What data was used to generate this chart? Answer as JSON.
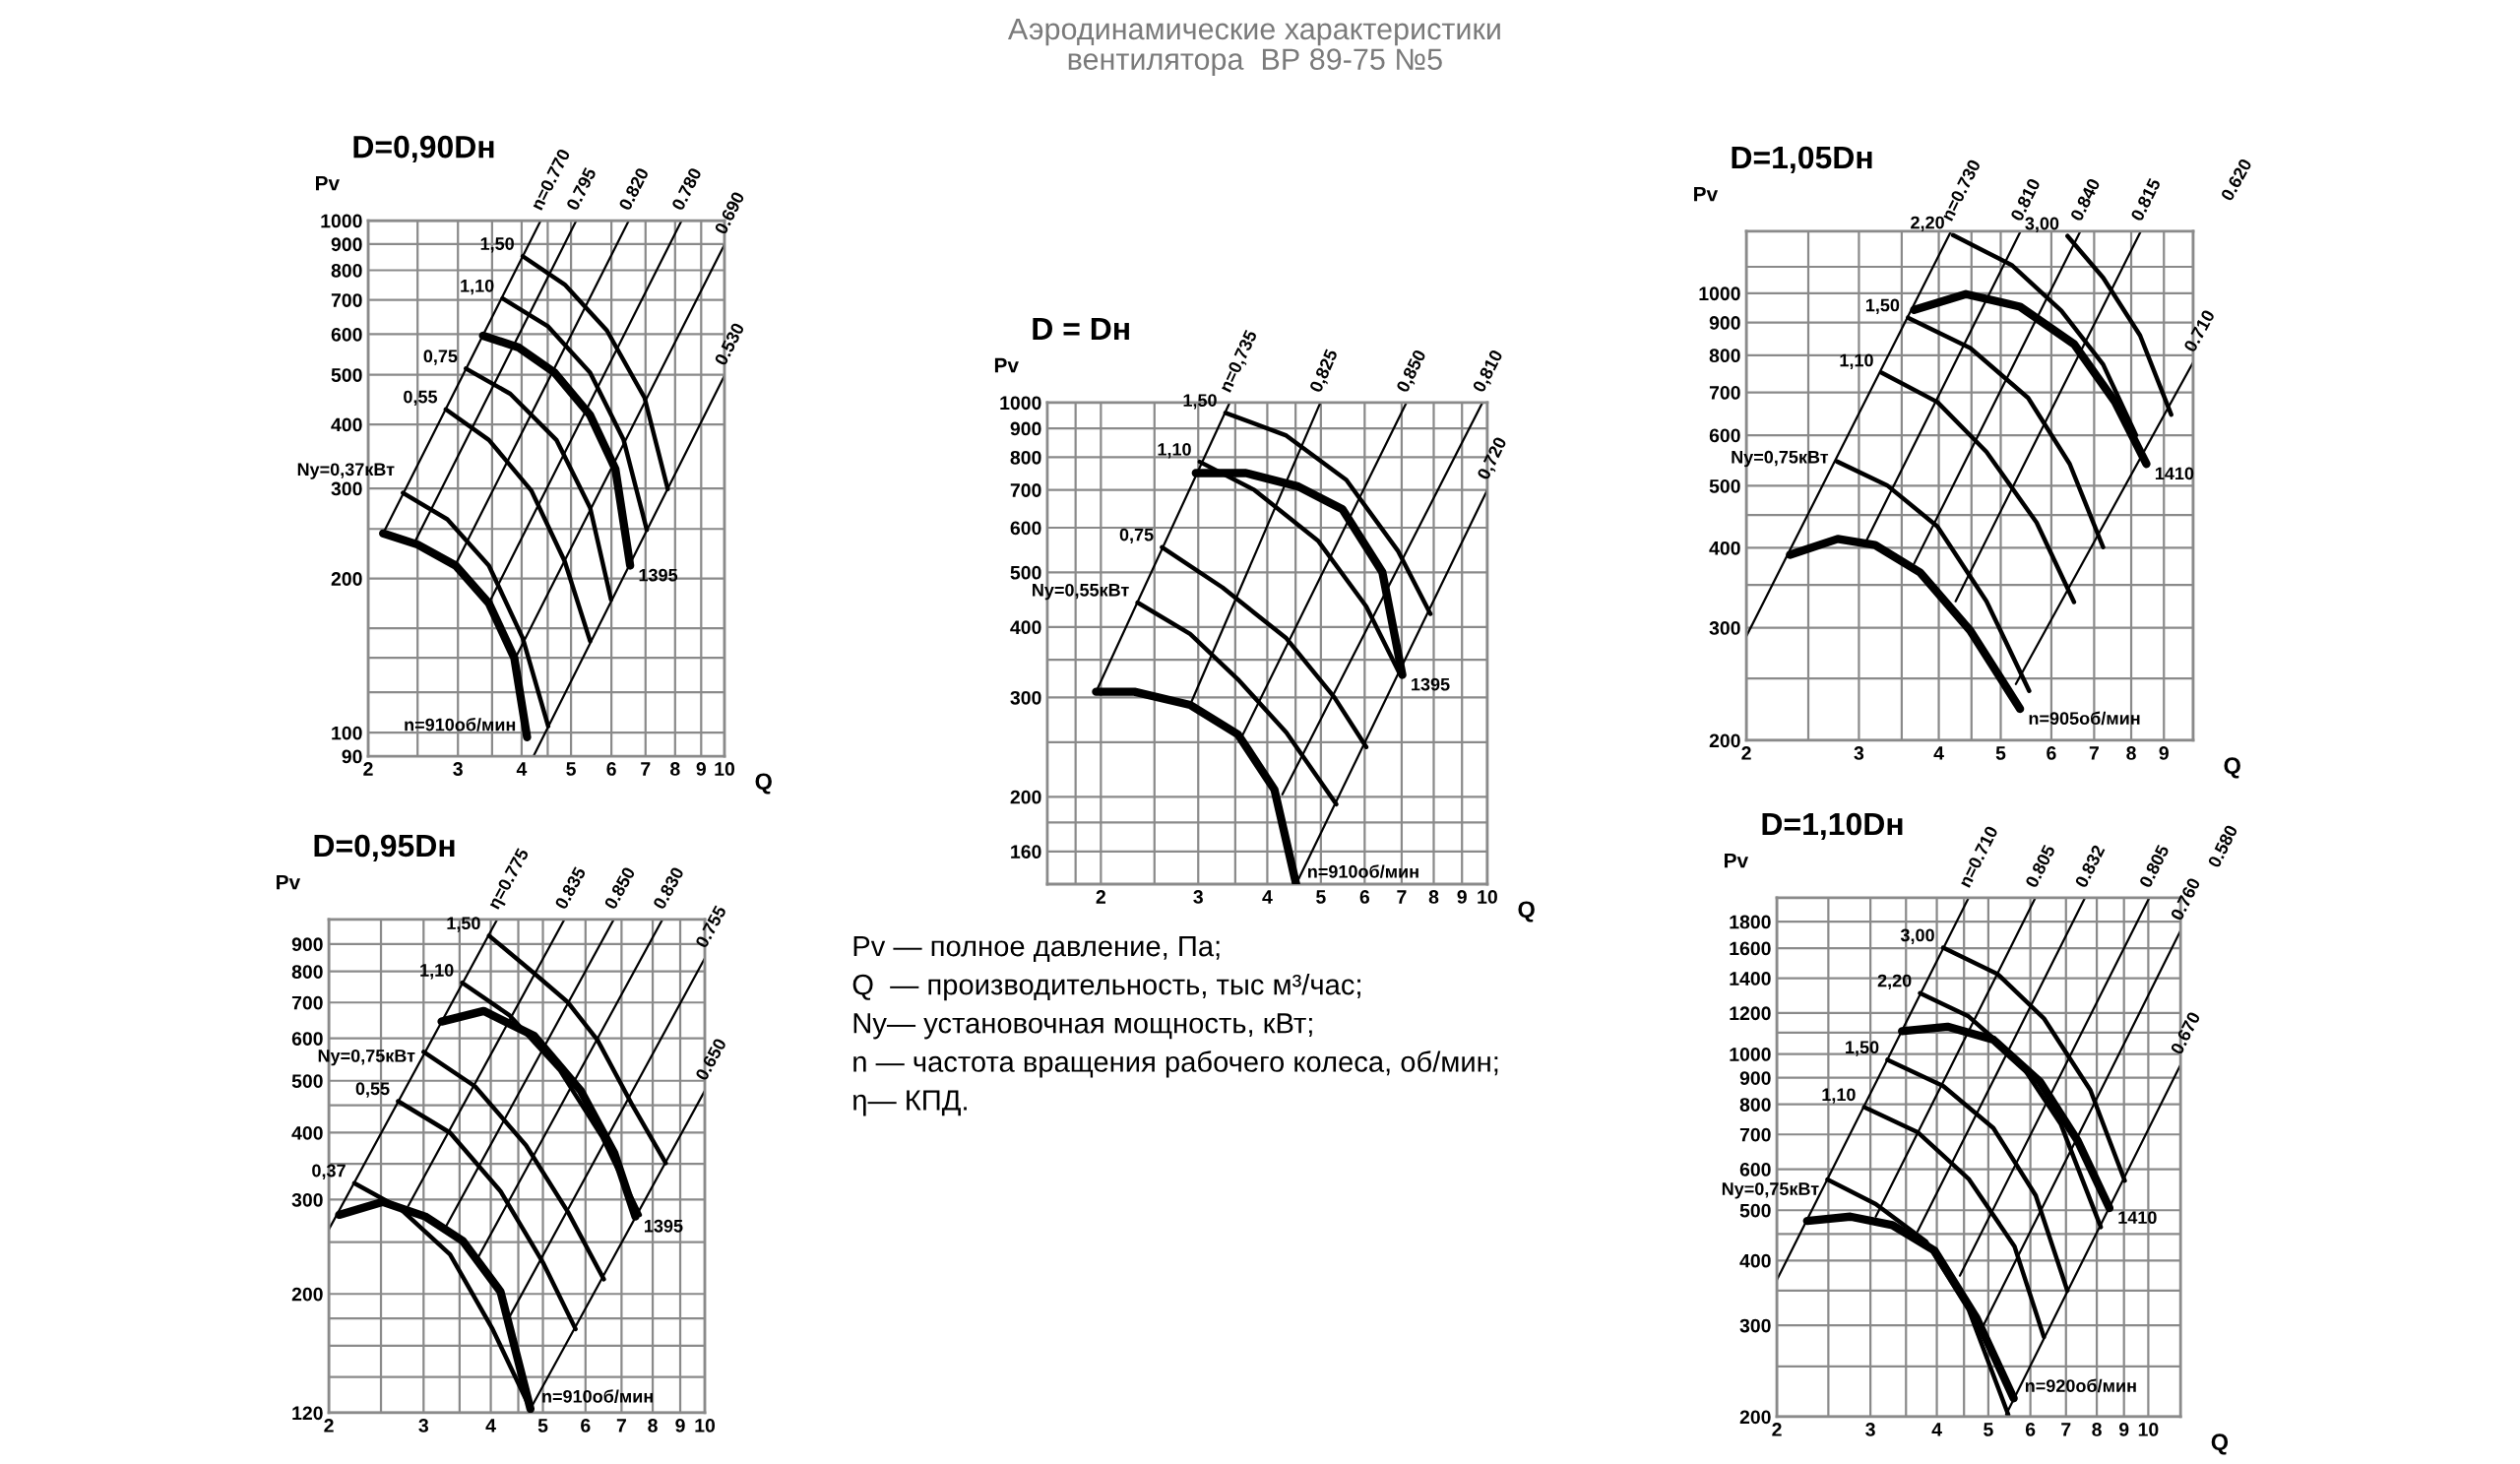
{
  "chart_data": [
    {
      "type": "line",
      "title": "D=0,90Dн",
      "xlabel": "Q",
      "ylabel": "Pv",
      "log": "xy",
      "grid": true,
      "xlim": [
        2,
        10
      ],
      "ylim": [
        90,
        1000
      ],
      "xticks": [
        2,
        {
          "value": 2.5,
          "label": null
        },
        3,
        {
          "value": 3.5,
          "label": null
        },
        4,
        {
          "value": 4.5,
          "label": null
        },
        5,
        6,
        7,
        8,
        9,
        10
      ],
      "yticks": [
        90,
        100,
        {
          "value": 120,
          "label": null
        },
        {
          "value": 140,
          "label": null
        },
        {
          "value": 160,
          "label": null
        },
        200,
        {
          "value": 250,
          "label": null
        },
        300,
        400,
        500,
        600,
        700,
        800,
        900,
        1000
      ],
      "series": [
        {
          "name": "n=0.770",
          "color": "#000000",
          "x": [
            2.14,
            4.36
          ],
          "values": [
            245,
            1000
          ]
        },
        {
          "name": "0.795",
          "color": "#000000",
          "x": [
            2.47,
            5.12
          ],
          "values": [
            236,
            1000
          ]
        },
        {
          "name": "0.820",
          "color": "#000000",
          "x": [
            2.96,
            6.49
          ],
          "values": [
            212,
            1000
          ]
        },
        {
          "name": "0.780",
          "color": "#000000",
          "x": [
            3.45,
            8.24
          ],
          "values": [
            179,
            1000
          ]
        },
        {
          "name": "0.690",
          "color": "#000000",
          "x": [
            3.89,
            10
          ],
          "values": [
            140,
            898
          ]
        },
        {
          "name": "0.530",
          "color": "#000000",
          "x": [
            4.22,
            10
          ],
          "values": [
            90,
            498
          ]
        },
        {
          "name": "Ny=0,37кВт",
          "color": "#000000",
          "x": [
            2.34,
            2.86,
            3.45,
            4.02,
            4.51
          ],
          "values": [
            294,
            261,
            212,
            153,
            103
          ]
        },
        {
          "name": "0,55",
          "color": "#000000",
          "x": [
            2.84,
            3.45,
            4.18,
            4.86,
            5.45
          ],
          "values": [
            428,
            373,
            297,
            216,
            151
          ]
        },
        {
          "name": "0,75",
          "color": "#000000",
          "x": [
            3.11,
            3.8,
            4.68,
            5.45,
            5.99
          ],
          "values": [
            514,
            459,
            373,
            275,
            182
          ]
        },
        {
          "name": "1,10",
          "color": "#000000",
          "x": [
            3.67,
            4.51,
            5.45,
            6.34,
            7.04
          ],
          "values": [
            705,
            621,
            505,
            373,
            249
          ]
        },
        {
          "name": "1,50",
          "color": "#000000",
          "x": [
            4.02,
            4.86,
            5.88,
            6.97,
            7.74
          ],
          "values": [
            852,
            750,
            610,
            451,
            299
          ]
        },
        {
          "name": "n=910об/мин",
          "color": "#000000",
          "x": [
            2.14,
            2.5,
            2.97,
            3.45,
            3.87,
            4.1
          ],
          "values": [
            245,
            233,
            212,
            179,
            140,
            98
          ]
        },
        {
          "name": "1395",
          "color": "#000000",
          "x": [
            3.36,
            3.95,
            4.64,
            5.45,
            6.11,
            6.53
          ],
          "values": [
            596,
            565,
            505,
            417,
            327,
            212
          ]
        }
      ]
    },
    {
      "type": "line",
      "title": "D = Dн",
      "xlabel": "Q",
      "ylabel": "Pv",
      "log": "xy",
      "grid": true,
      "xlim": [
        1.6,
        10
      ],
      "ylim": [
        140,
        1000
      ],
      "xticks": [
        {
          "value": 1.8,
          "label": null
        },
        2,
        {
          "value": 2.5,
          "label": null
        },
        3,
        {
          "value": 3.5,
          "label": null
        },
        4,
        {
          "value": 4.5,
          "label": null
        },
        5,
        6,
        7,
        8,
        9,
        10
      ],
      "yticks": [
        160,
        {
          "value": 180,
          "label": null
        },
        200,
        {
          "value": 250,
          "label": null
        },
        300,
        {
          "value": 350,
          "label": null
        },
        400,
        500,
        600,
        700,
        800,
        900,
        1000
      ],
      "series": [
        {
          "name": "n=0,735",
          "color": "#000000",
          "x": [
            1.96,
            3.42
          ],
          "values": [
            307,
            1000
          ]
        },
        {
          "name": "0,825",
          "color": "#000000",
          "x": [
            2.9,
            4.99
          ],
          "values": [
            291,
            1000
          ]
        },
        {
          "name": "0,850",
          "color": "#000000",
          "x": [
            3.6,
            7.14
          ],
          "values": [
            256,
            1000
          ]
        },
        {
          "name": "0,810",
          "color": "#000000",
          "x": [
            4.26,
            9.8
          ],
          "values": [
            202,
            1000
          ]
        },
        {
          "name": "0,720",
          "color": "#000000",
          "x": [
            4.51,
            10
          ],
          "values": [
            140,
            700
          ]
        },
        {
          "name": "Ny=0,55кВт",
          "color": "#000000",
          "x": [
            2.33,
            2.9,
            3.54,
            4.33,
            5.33
          ],
          "values": [
            442,
            389,
            323,
            260,
            194
          ]
        },
        {
          "name": "0,75",
          "color": "#000000",
          "x": [
            2.58,
            3.32,
            4.33,
            5.29,
            6.04
          ],
          "values": [
            554,
            470,
            382,
            300,
            245
          ]
        },
        {
          "name": "1,10",
          "color": "#000000",
          "x": [
            3.02,
            3.79,
            4.94,
            6.04,
            6.96
          ],
          "values": [
            785,
            700,
            569,
            435,
            329
          ]
        },
        {
          "name": "1,50",
          "color": "#000000",
          "x": [
            3.36,
            4.33,
            5.56,
            6.9,
            7.89
          ],
          "values": [
            959,
            874,
            729,
            545,
            422
          ]
        },
        {
          "name": "n=910об/мин",
          "color": "#000000",
          "x": [
            1.96,
            2.3,
            2.9,
            3.54,
            4.12,
            4.51
          ],
          "values": [
            307,
            307,
            291,
            258,
            206,
            140
          ]
        },
        {
          "name": "1395",
          "color": "#000000",
          "x": [
            2.97,
            3.66,
            4.55,
            5.47,
            6.46,
            7.02
          ],
          "values": [
            750,
            750,
            710,
            647,
            500,
            329
          ]
        }
      ]
    },
    {
      "type": "line",
      "title": "D=1,05Dн",
      "xlabel": "Q",
      "ylabel": "Pv",
      "log": "xy",
      "grid": true,
      "xlim": [
        2,
        10
      ],
      "ylim": [
        200,
        1250
      ],
      "xticks": [
        2,
        {
          "value": 2.5,
          "label": null
        },
        3,
        {
          "value": 3.5,
          "label": null
        },
        4,
        {
          "value": 4.5,
          "label": null
        },
        5,
        6,
        7,
        8,
        9,
        {
          "value": 10,
          "label": null
        }
      ],
      "yticks": [
        200,
        {
          "value": 250,
          "label": null
        },
        300,
        {
          "value": 350,
          "label": null
        },
        400,
        {
          "value": 450,
          "label": null
        },
        500,
        600,
        700,
        800,
        900,
        1000,
        {
          "value": 1100,
          "label": null
        }
      ],
      "annotations": [
        "0.620"
      ],
      "series": [
        {
          "name": "n=0.730",
          "color": "#000000",
          "x": [
            2,
            4.18
          ],
          "values": [
            291,
            1250
          ]
        },
        {
          "name": "0.810",
          "color": "#000000",
          "x": [
            3.08,
            5.37
          ],
          "values": [
            410,
            1250
          ]
        },
        {
          "name": "0.840",
          "color": "#000000",
          "x": [
            3.66,
            6.66
          ],
          "values": [
            378,
            1250
          ]
        },
        {
          "name": "0.815",
          "color": "#000000",
          "x": [
            4.25,
            8.28
          ],
          "values": [
            330,
            1250
          ]
        },
        {
          "name": "0.710",
          "color": "#000000",
          "x": [
            5.28,
            10
          ],
          "values": [
            245,
            780
          ]
        },
        {
          "name": "Ny=0,75кВт",
          "color": "#000000",
          "x": [
            2.77,
            3.32,
            3.98,
            4.75,
            5.54
          ],
          "values": [
            546,
            501,
            432,
            330,
            239
          ]
        },
        {
          "name": "1,10",
          "color": "#000000",
          "x": [
            3.26,
            3.98,
            4.75,
            5.69,
            6.51
          ],
          "values": [
            751,
            676,
            565,
            438,
            329
          ]
        },
        {
          "name": "1,50",
          "color": "#000000",
          "x": [
            3.58,
            4.48,
            5.52,
            6.41,
            7.23
          ],
          "values": [
            916,
            821,
            686,
            541,
            401
          ]
        },
        {
          "name": "2,20",
          "color": "#000000",
          "x": [
            4.21,
            5.2,
            6.22,
            7.23,
            8.14
          ],
          "values": [
            1233,
            1107,
            939,
            774,
            600
          ]
        },
        {
          "name": "3,00",
          "color": "#000000",
          "x": [
            6.36,
            7.23,
            8.26,
            9.24
          ],
          "values": [
            1229,
            1058,
            859,
            646
          ]
        },
        {
          "name": "n=905об/мин",
          "color": "#000000",
          "x": [
            2.34,
            2.78,
            3.18,
            3.74,
            4.48,
            5.36
          ],
          "values": [
            390,
            413,
            404,
            366,
            297,
            224
          ]
        },
        {
          "name": "1410",
          "color": "#000000",
          "x": [
            3.66,
            4.41,
            5.36,
            6.51,
            7.55,
            8.45
          ],
          "values": [
            942,
            997,
            953,
            833,
            676,
            541
          ]
        }
      ]
    },
    {
      "type": "line",
      "title": "D=0,95Dн",
      "ylabel": "Pv",
      "log": "xy",
      "grid": true,
      "xlim": [
        2,
        10
      ],
      "ylim": [
        120,
        1000
      ],
      "xticks": [
        2,
        {
          "value": 2.5,
          "label": null
        },
        3,
        {
          "value": 3.5,
          "label": null
        },
        4,
        {
          "value": 4.5,
          "label": null
        },
        5,
        6,
        7,
        8,
        9,
        10
      ],
      "yticks": [
        120,
        {
          "value": 140,
          "label": null
        },
        {
          "value": 160,
          "label": null
        },
        {
          "value": 180,
          "label": null
        },
        200,
        {
          "value": 250,
          "label": null
        },
        300,
        {
          "value": 350,
          "label": null
        },
        400,
        {
          "value": 450,
          "label": null
        },
        500,
        600,
        700,
        800,
        900,
        {
          "value": 1000,
          "label": null
        }
      ],
      "series": [
        {
          "name": "η=0.775",
          "color": "#000000",
          "x": [
            2,
            4.11
          ],
          "values": [
            264,
            1000
          ]
        },
        {
          "name": "0.835",
          "color": "#000000",
          "x": [
            2.81,
            5.48
          ],
          "values": [
            292,
            1000
          ]
        },
        {
          "name": "0.850",
          "color": "#000000",
          "x": [
            3.3,
            6.77
          ],
          "values": [
            267,
            1000
          ]
        },
        {
          "name": "0.830",
          "color": "#000000",
          "x": [
            3.78,
            8.34
          ],
          "values": [
            233,
            1000
          ]
        },
        {
          "name": "0.755",
          "color": "#000000",
          "x": [
            4.33,
            10
          ],
          "values": [
            181,
            847
          ]
        },
        {
          "name": "0.650",
          "color": "#000000",
          "x": [
            4.74,
            10
          ],
          "values": [
            122,
            479
          ]
        },
        {
          "name": "0,37",
          "color": "#000000",
          "x": [
            2.23,
            2.71,
            3.36,
            4.03,
            4.74
          ],
          "values": [
            322,
            289,
            237,
            172,
            122
          ]
        },
        {
          "name": "0,55",
          "color": "#000000",
          "x": [
            2.69,
            3.36,
            4.17,
            5.0,
            5.75
          ],
          "values": [
            458,
            400,
            311,
            229,
            172
          ]
        },
        {
          "name": "Ny=0,75кВт",
          "color": "#000000",
          "x": [
            3.0,
            3.74,
            4.65,
            5.57,
            6.49
          ],
          "values": [
            566,
            488,
            379,
            284,
            213
          ]
        },
        {
          "name": "1,10",
          "color": "#000000",
          "x": [
            3.54,
            4.33,
            5.37,
            6.44,
            7.57
          ],
          "values": [
            762,
            663,
            524,
            393,
            281
          ]
        },
        {
          "name": "1,50",
          "color": "#000000",
          "x": [
            3.97,
            4.82,
            5.57,
            6.32,
            7.3,
            8.46
          ],
          "values": [
            933,
            793,
            700,
            595,
            454,
            351
          ]
        },
        {
          "name": "n=910об/мин",
          "color": "#000000",
          "x": [
            2.09,
            2.52,
            3.02,
            3.55,
            4.17,
            4.74
          ],
          "values": [
            281,
            297,
            279,
            251,
            202,
            122
          ]
        },
        {
          "name": "1395",
          "color": "#000000",
          "x": [
            3.24,
            3.88,
            4.82,
            5.88,
            6.79,
            7.43
          ],
          "values": [
            645,
            675,
            606,
            479,
            366,
            279
          ]
        }
      ]
    },
    {
      "type": "line",
      "title": "D=1,10Dн",
      "xlabel": "Q",
      "ylabel": "Pv",
      "log": "xy",
      "grid": true,
      "xlim": [
        2,
        11.5
      ],
      "ylim": [
        200,
        2000
      ],
      "xticks": [
        2,
        {
          "value": 2.5,
          "label": null
        },
        3,
        {
          "value": 3.5,
          "label": null
        },
        4,
        {
          "value": 4.5,
          "label": null
        },
        5,
        6,
        7,
        8,
        9,
        10
      ],
      "yticks": [
        200,
        {
          "value": 250,
          "label": null
        },
        300,
        {
          "value": 350,
          "label": null
        },
        400,
        {
          "value": 450,
          "label": null
        },
        500,
        600,
        700,
        800,
        900,
        1000,
        {
          "value": 1100,
          "label": null
        },
        1200,
        1400,
        1600,
        1800
      ],
      "annotations": [
        "0.580"
      ],
      "series": [
        {
          "name": "n=0.710",
          "color": "#000000",
          "x": [
            2,
            4.59
          ],
          "values": [
            367,
            2000
          ]
        },
        {
          "name": "0.805",
          "color": "#000000",
          "x": [
            3.07,
            6.13
          ],
          "values": [
            486,
            2000
          ]
        },
        {
          "name": "0.832",
          "color": "#000000",
          "x": [
            3.68,
            7.6
          ],
          "values": [
            455,
            2000
          ]
        },
        {
          "name": "0.805",
          "color": "#000000",
          "x": [
            4.42,
            10.04
          ],
          "values": [
            374,
            2000
          ]
        },
        {
          "name": "0.760",
          "color": "#000000",
          "x": [
            4.84,
            11.5
          ],
          "values": [
            293,
            1729
          ]
        },
        {
          "name": "0.670",
          "color": "#000000",
          "x": [
            5.4,
            11.5
          ],
          "values": [
            202,
            954
          ]
        },
        {
          "name": "Ny=0,75кВт",
          "color": "#000000",
          "x": [
            2.49,
            3.07,
            3.82,
            4.59,
            5.45
          ],
          "values": [
            573,
            514,
            435,
            322,
            202
          ]
        },
        {
          "name": "1,10",
          "color": "#000000",
          "x": [
            2.92,
            3.68,
            4.59,
            5.6,
            6.36
          ],
          "values": [
            790,
            707,
            575,
            426,
            285
          ]
        },
        {
          "name": "1,50",
          "color": "#000000",
          "x": [
            3.23,
            4.11,
            5.11,
            6.14,
            7.04
          ],
          "values": [
            975,
            868,
            720,
            534,
            350
          ]
        },
        {
          "name": "2,20",
          "color": "#000000",
          "x": [
            3.72,
            4.59,
            5.7,
            6.84,
            8.14
          ],
          "values": [
            1310,
            1182,
            972,
            734,
            464
          ]
        },
        {
          "name": "3,00",
          "color": "#000000",
          "x": [
            4.11,
            5.21,
            6.36,
            7.78,
            9.03
          ],
          "values": [
            1603,
            1425,
            1172,
            852,
            570
          ]
        },
        {
          "name": "n=920об/мин",
          "color": "#000000",
          "x": [
            2.28,
            2.75,
            3.3,
            3.96,
            4.75,
            5.58
          ],
          "values": [
            477,
            486,
            468,
            418,
            310,
            217
          ]
        },
        {
          "name": "1410",
          "color": "#000000",
          "x": [
            3.44,
            4.19,
            5.11,
            6.25,
            7.36,
            8.45
          ],
          "values": [
            1107,
            1129,
            1066,
            885,
            681,
            505
          ]
        }
      ]
    },
    {
      "type": "other",
      "title": "Аэродинамические характеристики\nвентилятора  ВР 89-75 №5",
      "annotations": [
        "Pv — полное давление, Па;",
        "Q  — производительность, тыс м³/час;",
        "Ny— установочная мощность, кВт;",
        "n — частота вращения рабочего колеса, об/мин;",
        "η— КПД."
      ]
    }
  ]
}
